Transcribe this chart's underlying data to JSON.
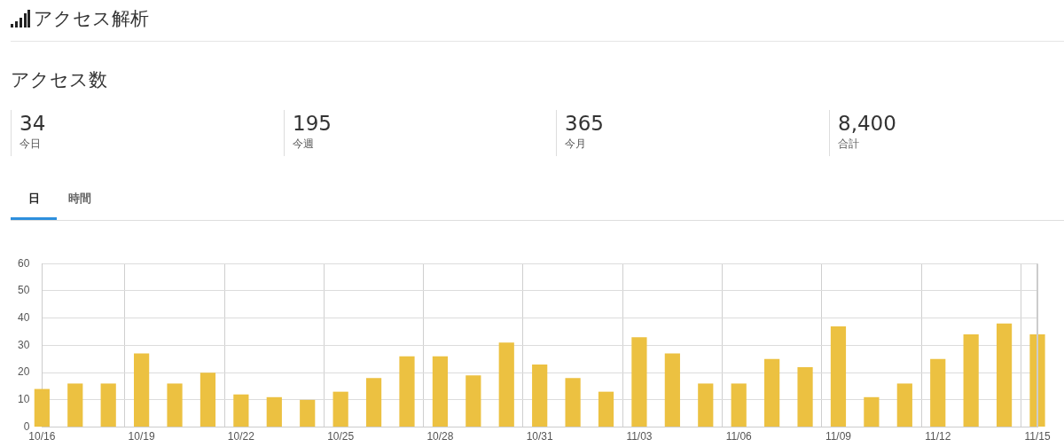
{
  "chart_data": {
    "type": "bar",
    "title": "アクセス解析",
    "subtitle": "アクセス数",
    "annotations": [
      "34",
      "今日",
      "195",
      "今週",
      "365",
      "今月",
      "8,400",
      "合計",
      "日",
      "時間"
    ],
    "categories": [
      "10/16",
      null,
      null,
      "10/19",
      null,
      null,
      "10/22",
      null,
      null,
      "10/25",
      null,
      null,
      "10/28",
      null,
      null,
      "10/31",
      null,
      null,
      "11/03",
      null,
      null,
      "11/06",
      null,
      null,
      "11/09",
      null,
      null,
      "11/12",
      null,
      null,
      "11/15"
    ],
    "values": [
      14,
      16,
      16,
      27,
      16,
      20,
      12,
      11,
      10,
      13,
      18,
      26,
      26,
      19,
      31,
      23,
      18,
      13,
      33,
      27,
      16,
      16,
      25,
      22,
      37,
      11,
      16,
      25,
      34,
      38,
      34
    ],
    "color": "#ecc141",
    "ylim": [
      0,
      60
    ],
    "yticks": [
      0,
      10,
      20,
      30,
      40,
      50,
      60
    ],
    "grid": true
  }
}
